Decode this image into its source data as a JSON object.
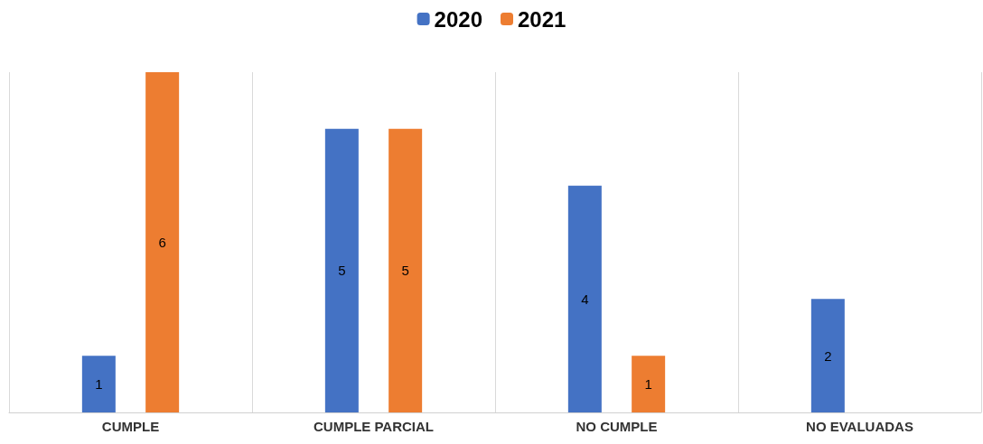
{
  "chart_data": {
    "type": "bar",
    "categories": [
      "CUMPLE",
      "CUMPLE PARCIAL",
      "NO CUMPLE",
      "NO EVALUADAS"
    ],
    "series": [
      {
        "name": "2020",
        "color": "#4472c4",
        "values": [
          1,
          5,
          4,
          2
        ]
      },
      {
        "name": "2021",
        "color": "#ed7d31",
        "values": [
          6,
          5,
          1,
          null
        ]
      }
    ],
    "data_labels": true,
    "grid": "x",
    "legend": "top"
  }
}
